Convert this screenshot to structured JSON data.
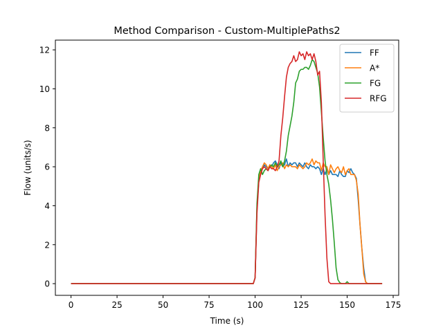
{
  "chart_data": {
    "type": "line",
    "title": "Method Comparison - Custom-MultiplePaths2",
    "xlabel": "Time (s)",
    "ylabel": "Flow (units/s)",
    "xlim": [
      -8.5,
      178
    ],
    "ylim": [
      -0.6,
      12.5
    ],
    "xticks": [
      0,
      25,
      50,
      75,
      100,
      125,
      150,
      175
    ],
    "yticks": [
      0,
      2,
      4,
      6,
      8,
      10,
      12
    ],
    "grid": false,
    "legend_position": "top-right",
    "series": [
      {
        "name": "FF",
        "color": "#1f77b4",
        "points": [
          [
            0,
            0
          ],
          [
            99,
            0
          ],
          [
            100,
            0.3
          ],
          [
            101,
            3.8
          ],
          [
            102,
            5.3
          ],
          [
            103,
            5.8
          ],
          [
            104,
            5.9
          ],
          [
            105,
            6.1
          ],
          [
            106,
            6.0
          ],
          [
            107,
            5.9
          ],
          [
            108,
            6.1
          ],
          [
            109,
            6.0
          ],
          [
            110,
            6.2
          ],
          [
            111,
            6.3
          ],
          [
            112,
            6.1
          ],
          [
            113,
            5.9
          ],
          [
            114,
            6.2
          ],
          [
            115,
            6.0
          ],
          [
            116,
            6.1
          ],
          [
            117,
            6.4
          ],
          [
            118,
            6.0
          ],
          [
            119,
            6.2
          ],
          [
            120,
            6.1
          ],
          [
            121,
            6.2
          ],
          [
            122,
            6.2
          ],
          [
            123,
            6.0
          ],
          [
            124,
            6.2
          ],
          [
            125,
            6.1
          ],
          [
            126,
            6.0
          ],
          [
            127,
            6.2
          ],
          [
            128,
            6.0
          ],
          [
            129,
            5.9
          ],
          [
            130,
            6.1
          ],
          [
            131,
            6.0
          ],
          [
            132,
            6.0
          ],
          [
            133,
            5.9
          ],
          [
            134,
            6.0
          ],
          [
            135,
            5.9
          ],
          [
            136,
            5.6
          ],
          [
            137,
            5.9
          ],
          [
            138,
            5.6
          ],
          [
            139,
            5.9
          ],
          [
            140,
            5.6
          ],
          [
            141,
            5.8
          ],
          [
            142,
            5.6
          ],
          [
            143,
            5.6
          ],
          [
            144,
            5.6
          ],
          [
            145,
            5.5
          ],
          [
            146,
            5.8
          ],
          [
            147,
            5.6
          ],
          [
            148,
            5.5
          ],
          [
            149,
            5.5
          ],
          [
            150,
            5.8
          ],
          [
            151,
            5.7
          ],
          [
            152,
            5.9
          ],
          [
            153,
            5.7
          ],
          [
            154,
            5.6
          ],
          [
            155,
            5.4
          ],
          [
            156,
            4.3
          ],
          [
            157,
            3.0
          ],
          [
            158,
            1.8
          ],
          [
            159,
            0.8
          ],
          [
            160,
            0.1
          ],
          [
            161,
            0
          ],
          [
            169,
            0
          ]
        ]
      },
      {
        "name": "A*",
        "color": "#ff7f0e",
        "points": [
          [
            0,
            0
          ],
          [
            99,
            0
          ],
          [
            100,
            0.3
          ],
          [
            101,
            3.9
          ],
          [
            102,
            5.4
          ],
          [
            103,
            5.8
          ],
          [
            104,
            6.0
          ],
          [
            105,
            6.2
          ],
          [
            106,
            6.1
          ],
          [
            107,
            5.9
          ],
          [
            108,
            6.1
          ],
          [
            109,
            6.0
          ],
          [
            110,
            5.9
          ],
          [
            111,
            6.1
          ],
          [
            112,
            5.8
          ],
          [
            113,
            6.0
          ],
          [
            114,
            6.1
          ],
          [
            115,
            6.2
          ],
          [
            116,
            5.9
          ],
          [
            117,
            6.1
          ],
          [
            118,
            6.0
          ],
          [
            119,
            6.1
          ],
          [
            120,
            6.0
          ],
          [
            121,
            6.0
          ],
          [
            122,
            6.0
          ],
          [
            123,
            5.9
          ],
          [
            124,
            6.1
          ],
          [
            125,
            6.0
          ],
          [
            126,
            5.9
          ],
          [
            127,
            6.0
          ],
          [
            128,
            6.2
          ],
          [
            129,
            6.1
          ],
          [
            130,
            6.2
          ],
          [
            131,
            6.4
          ],
          [
            132,
            6.1
          ],
          [
            133,
            6.3
          ],
          [
            134,
            6.2
          ],
          [
            135,
            6.2
          ],
          [
            136,
            5.8
          ],
          [
            137,
            6.2
          ],
          [
            138,
            6.0
          ],
          [
            139,
            6.0
          ],
          [
            140,
            5.6
          ],
          [
            141,
            6.1
          ],
          [
            142,
            5.9
          ],
          [
            143,
            5.7
          ],
          [
            144,
            5.9
          ],
          [
            145,
            6.0
          ],
          [
            146,
            5.8
          ],
          [
            147,
            5.7
          ],
          [
            148,
            6.0
          ],
          [
            149,
            5.6
          ],
          [
            150,
            5.8
          ],
          [
            151,
            5.9
          ],
          [
            152,
            5.6
          ],
          [
            153,
            5.6
          ],
          [
            154,
            5.6
          ],
          [
            155,
            5.3
          ],
          [
            156,
            4.6
          ],
          [
            157,
            3.0
          ],
          [
            158,
            1.8
          ],
          [
            159,
            0.5
          ],
          [
            160,
            0.1
          ],
          [
            161,
            0
          ],
          [
            169,
            0
          ]
        ]
      },
      {
        "name": "FG",
        "color": "#2ca02c",
        "points": [
          [
            0,
            0
          ],
          [
            99,
            0
          ],
          [
            100,
            0.3
          ],
          [
            101,
            4.1
          ],
          [
            102,
            5.6
          ],
          [
            103,
            5.9
          ],
          [
            104,
            5.6
          ],
          [
            105,
            5.8
          ],
          [
            106,
            5.9
          ],
          [
            107,
            5.8
          ],
          [
            108,
            6.0
          ],
          [
            109,
            6.1
          ],
          [
            110,
            6.0
          ],
          [
            111,
            6.2
          ],
          [
            112,
            6.0
          ],
          [
            113,
            6.1
          ],
          [
            114,
            6.3
          ],
          [
            115,
            6.0
          ],
          [
            116,
            6.3
          ],
          [
            117,
            6.8
          ],
          [
            118,
            7.6
          ],
          [
            119,
            8.1
          ],
          [
            120,
            8.6
          ],
          [
            121,
            9.3
          ],
          [
            122,
            10.3
          ],
          [
            123,
            10.5
          ],
          [
            124,
            10.9
          ],
          [
            125,
            11.0
          ],
          [
            126,
            11.0
          ],
          [
            127,
            11.1
          ],
          [
            128,
            11.1
          ],
          [
            129,
            11.0
          ],
          [
            130,
            11.2
          ],
          [
            131,
            11.5
          ],
          [
            132,
            11.4
          ],
          [
            133,
            11.1
          ],
          [
            134,
            10.8
          ],
          [
            135,
            10.1
          ],
          [
            136,
            8.8
          ],
          [
            137,
            7.5
          ],
          [
            138,
            6.3
          ],
          [
            139,
            5.6
          ],
          [
            140,
            5.1
          ],
          [
            141,
            4.3
          ],
          [
            142,
            3.3
          ],
          [
            143,
            2.1
          ],
          [
            144,
            0.8
          ],
          [
            145,
            0.2
          ],
          [
            146,
            0.05
          ],
          [
            147,
            0
          ],
          [
            149,
            0
          ],
          [
            150,
            0.1
          ],
          [
            151,
            0
          ],
          [
            152,
            0
          ],
          [
            169,
            0
          ]
        ]
      },
      {
        "name": "RFG",
        "color": "#d62728",
        "points": [
          [
            0,
            0
          ],
          [
            99,
            0
          ],
          [
            100,
            0.3
          ],
          [
            101,
            3.6
          ],
          [
            102,
            5.2
          ],
          [
            103,
            5.6
          ],
          [
            104,
            5.9
          ],
          [
            105,
            6.0
          ],
          [
            106,
            5.9
          ],
          [
            107,
            5.8
          ],
          [
            108,
            6.0
          ],
          [
            109,
            5.9
          ],
          [
            110,
            5.9
          ],
          [
            111,
            5.8
          ],
          [
            112,
            6.0
          ],
          [
            113,
            6.3
          ],
          [
            114,
            7.6
          ],
          [
            115,
            8.5
          ],
          [
            116,
            9.6
          ],
          [
            117,
            10.6
          ],
          [
            118,
            11.1
          ],
          [
            119,
            11.3
          ],
          [
            120,
            11.4
          ],
          [
            121,
            11.7
          ],
          [
            122,
            11.4
          ],
          [
            123,
            11.5
          ],
          [
            124,
            11.9
          ],
          [
            125,
            11.7
          ],
          [
            126,
            11.8
          ],
          [
            127,
            11.5
          ],
          [
            128,
            11.9
          ],
          [
            129,
            11.7
          ],
          [
            130,
            11.8
          ],
          [
            131,
            11.5
          ],
          [
            132,
            11.8
          ],
          [
            133,
            11.4
          ],
          [
            134,
            10.7
          ],
          [
            135,
            10.9
          ],
          [
            136,
            9.3
          ],
          [
            137,
            6.3
          ],
          [
            138,
            3.5
          ],
          [
            139,
            1.3
          ],
          [
            140,
            0.1
          ],
          [
            141,
            0
          ],
          [
            169,
            0
          ]
        ]
      }
    ]
  }
}
